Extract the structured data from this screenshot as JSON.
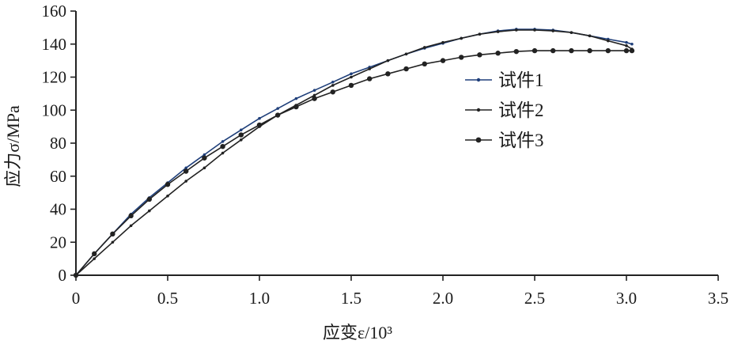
{
  "chart_data": {
    "type": "line",
    "title": "",
    "xlabel": "应变ε/10³",
    "ylabel": "应力σ/MPa",
    "xlim": [
      0,
      3.5
    ],
    "ylim": [
      0,
      160
    ],
    "xticks": [
      "0",
      "0.5",
      "1.0",
      "1.5",
      "2.0",
      "2.5",
      "3.0",
      "3.5"
    ],
    "yticks": [
      "0",
      "20",
      "40",
      "60",
      "80",
      "100",
      "120",
      "140",
      "160"
    ],
    "grid": false,
    "legend_position": "right",
    "series": [
      {
        "name": "试件1",
        "color": "#1f3f7a",
        "marker": "dot-small",
        "x": [
          0,
          0.1,
          0.2,
          0.3,
          0.4,
          0.5,
          0.6,
          0.7,
          0.8,
          0.9,
          1.0,
          1.1,
          1.2,
          1.3,
          1.4,
          1.5,
          1.6,
          1.7,
          1.8,
          1.9,
          2.0,
          2.1,
          2.2,
          2.3,
          2.4,
          2.5,
          2.6,
          2.7,
          2.8,
          2.9,
          3.0,
          3.03
        ],
        "y": [
          0,
          13,
          25,
          37,
          47,
          56,
          65,
          73,
          81,
          88,
          95,
          101,
          107,
          112,
          117,
          122,
          126,
          130,
          134,
          137.5,
          140.5,
          143.5,
          146,
          148,
          149,
          149,
          148.5,
          147,
          145,
          143,
          141,
          140
        ]
      },
      {
        "name": "试件2",
        "color": "#222222",
        "marker": "dot-small",
        "x": [
          0,
          0.1,
          0.2,
          0.3,
          0.4,
          0.5,
          0.6,
          0.7,
          0.8,
          0.9,
          1.0,
          1.1,
          1.2,
          1.3,
          1.4,
          1.5,
          1.6,
          1.7,
          1.8,
          1.9,
          2.0,
          2.1,
          2.2,
          2.3,
          2.4,
          2.5,
          2.6,
          2.7,
          2.8,
          2.9,
          3.0,
          3.03
        ],
        "y": [
          0,
          10,
          20,
          30,
          39,
          48,
          57,
          65,
          74,
          82,
          90,
          97,
          103,
          109,
          115,
          120,
          125,
          130,
          134,
          138,
          141,
          143.5,
          146,
          147.5,
          148.5,
          148.5,
          148,
          147,
          145,
          142,
          139,
          137
        ]
      },
      {
        "name": "试件3",
        "color": "#222222",
        "marker": "dot-large",
        "x": [
          0,
          0.1,
          0.2,
          0.3,
          0.4,
          0.5,
          0.6,
          0.7,
          0.8,
          0.9,
          1.0,
          1.1,
          1.2,
          1.3,
          1.4,
          1.5,
          1.6,
          1.7,
          1.8,
          1.9,
          2.0,
          2.1,
          2.2,
          2.3,
          2.4,
          2.5,
          2.6,
          2.7,
          2.8,
          2.9,
          3.0,
          3.03
        ],
        "y": [
          0,
          13,
          25,
          36,
          46,
          55,
          63,
          71,
          78,
          85,
          91,
          97,
          102,
          107,
          111,
          115,
          119,
          122,
          125,
          128,
          130,
          132,
          133.5,
          134.5,
          135.5,
          136,
          136,
          136,
          136,
          136,
          136,
          136
        ]
      }
    ]
  }
}
